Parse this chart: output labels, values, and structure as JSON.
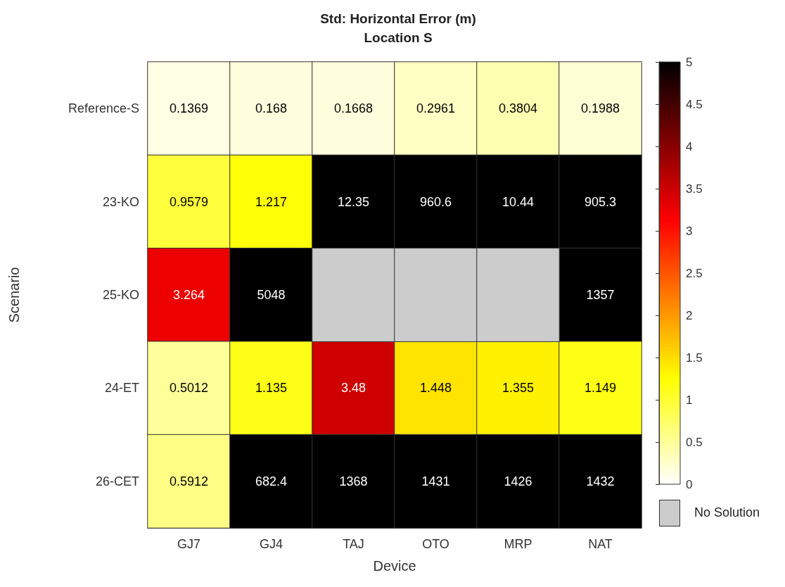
{
  "chart_data": {
    "type": "heatmap",
    "title": "Std: Horizontal Error (m)",
    "subtitle": "Location S",
    "xlabel": "Device",
    "ylabel": "Scenario",
    "categories": [
      "GJ7",
      "GJ4",
      "TAJ",
      "OTO",
      "MRP",
      "NAT"
    ],
    "y_categories": [
      "Reference-S",
      "23-KO",
      "25-KO",
      "24-ET",
      "26-CET"
    ],
    "cells": [
      [
        0.1369,
        0.168,
        0.1668,
        0.2961,
        0.3804,
        0.1988
      ],
      [
        0.9579,
        1.217,
        12.35,
        960.6,
        10.44,
        905.3
      ],
      [
        3.264,
        5048,
        null,
        null,
        null,
        1357
      ],
      [
        0.5012,
        1.135,
        3.48,
        1.448,
        1.355,
        1.149
      ],
      [
        0.5912,
        682.4,
        1368,
        1431,
        1426,
        1432
      ]
    ],
    "data_labels": true,
    "clim": [
      0,
      5
    ],
    "cticks": [
      0,
      0.5,
      1,
      1.5,
      2,
      2.5,
      3,
      3.5,
      4,
      4.5,
      5
    ],
    "annotations": [
      "No Solution"
    ]
  }
}
